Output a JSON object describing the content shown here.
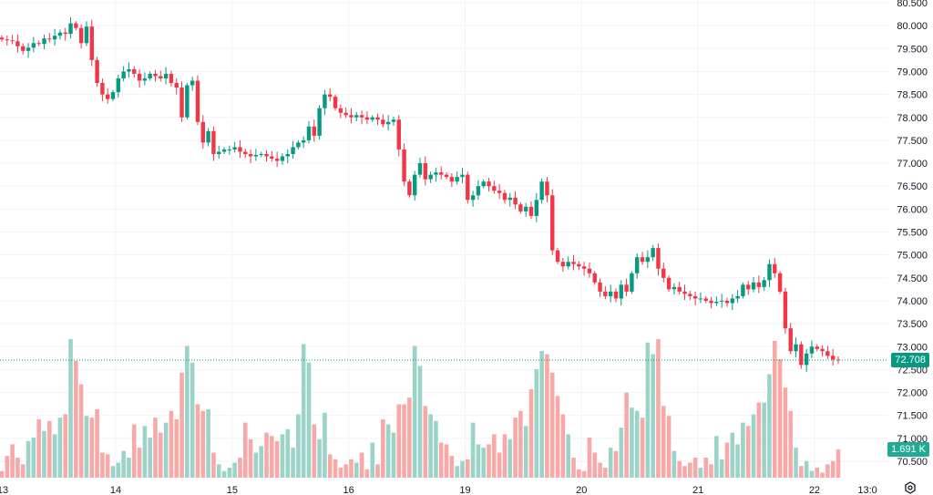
{
  "chart_data": {
    "type": "candlestick",
    "interval": "1h",
    "colors": {
      "up": "#089981",
      "down": "#f23645",
      "grid": "#f0f3fa",
      "up_volume": "#9cd3c9",
      "down_volume": "#f7a9a8"
    },
    "ylim": [
      70.5,
      80.5
    ],
    "y_ticks": [
      "80.500",
      "80.000",
      "79.500",
      "79.000",
      "78.500",
      "78.000",
      "77.500",
      "77.000",
      "76.500",
      "76.000",
      "75.500",
      "75.000",
      "74.500",
      "74.000",
      "73.500",
      "73.000",
      "72.500",
      "72.000",
      "71.500",
      "71.000",
      "70.500"
    ],
    "x_ticks": [
      {
        "label": "13",
        "index": -1
      },
      {
        "label": "14",
        "index": 21
      },
      {
        "label": "15",
        "index": 43
      },
      {
        "label": "16",
        "index": 65
      },
      {
        "label": "19",
        "index": 87
      },
      {
        "label": "20",
        "index": 109
      },
      {
        "label": "21",
        "index": 131
      },
      {
        "label": "22",
        "index": 153
      },
      {
        "label": "13:0",
        "index": 163
      }
    ],
    "open_first": 79.74,
    "close": [
      79.7,
      79.68,
      79.66,
      79.55,
      79.45,
      79.52,
      79.62,
      79.6,
      79.72,
      79.7,
      79.78,
      79.85,
      79.82,
      80.05,
      79.95,
      79.62,
      79.98,
      79.25,
      78.75,
      78.5,
      78.4,
      78.55,
      78.85,
      79.0,
      79.05,
      78.95,
      78.8,
      78.85,
      78.95,
      78.9,
      78.85,
      78.95,
      78.75,
      78.65,
      78.0,
      78.7,
      78.8,
      77.9,
      77.45,
      77.7,
      77.2,
      77.25,
      77.3,
      77.3,
      77.35,
      77.25,
      77.2,
      77.15,
      77.18,
      77.2,
      77.15,
      77.1,
      77.05,
      77.15,
      77.2,
      77.35,
      77.45,
      77.5,
      77.8,
      77.6,
      78.2,
      78.5,
      78.45,
      78.2,
      78.1,
      78.05,
      78.0,
      78.05,
      78.0,
      77.95,
      78.0,
      77.95,
      77.85,
      77.9,
      77.95,
      77.3,
      76.6,
      76.3,
      76.75,
      77.0,
      76.65,
      76.75,
      76.8,
      76.75,
      76.7,
      76.6,
      76.7,
      76.75,
      76.2,
      76.3,
      76.5,
      76.6,
      76.5,
      76.4,
      76.35,
      76.2,
      76.25,
      76.1,
      75.95,
      76.05,
      75.85,
      76.2,
      76.6,
      76.3,
      75.1,
      74.85,
      74.75,
      74.85,
      74.8,
      74.75,
      74.7,
      74.6,
      74.4,
      74.2,
      74.1,
      74.2,
      74.05,
      74.35,
      74.2,
      74.6,
      74.95,
      74.85,
      74.95,
      75.15,
      74.7,
      74.5,
      74.25,
      74.3,
      74.2,
      74.15,
      74.1,
      74.05,
      74.05,
      74.0,
      73.95,
      73.98,
      74.0,
      73.95,
      74.05,
      74.1,
      74.35,
      74.25,
      74.4,
      74.3,
      74.45,
      74.8,
      74.6,
      74.2,
      73.4,
      72.9,
      73.05,
      72.6,
      72.85,
      73.0,
      72.95,
      72.9,
      72.8,
      72.72,
      72.708
    ],
    "volume_k": [
      0.4,
      1.3,
      2.0,
      1.2,
      0.8,
      2.2,
      2.4,
      3.5,
      2.8,
      3.4,
      2.6,
      3.6,
      3.8,
      8.3,
      7.0,
      5.6,
      3.7,
      3.6,
      4.1,
      1.5,
      1.4,
      0.7,
      0.9,
      1.6,
      1.2,
      3.2,
      1.8,
      3.1,
      2.4,
      3.6,
      2.7,
      3.3,
      4.0,
      3.5,
      6.3,
      7.9,
      6.9,
      4.4,
      4.0,
      4.1,
      1.5,
      0.8,
      0.4,
      0.6,
      0.9,
      1.2,
      3.3,
      2.3,
      1.5,
      1.9,
      2.7,
      2.5,
      2.2,
      2.6,
      2.9,
      1.8,
      3.8,
      8.0,
      6.9,
      3.2,
      2.3,
      3.9,
      1.4,
      1.1,
      0.6,
      0.8,
      1.1,
      0.9,
      1.5,
      0.5,
      2.1,
      0.8,
      3.5,
      3.2,
      2.7,
      4.4,
      4.4,
      4.8,
      7.9,
      6.7,
      4.3,
      3.8,
      3.4,
      2.1,
      2.0,
      1.3,
      0.7,
      1.0,
      1.1,
      3.3,
      2.0,
      1.8,
      2.0,
      2.6,
      1.5,
      2.6,
      2.3,
      3.6,
      4.0,
      3.1,
      5.3,
      6.5,
      7.6,
      7.4,
      6.3,
      4.9,
      3.8,
      2.6,
      1.2,
      0.5,
      0.4,
      2.4,
      1.5,
      0.9,
      0.6,
      1.8,
      1.6,
      3.0,
      5.1,
      4.2,
      4.0,
      3.6,
      8.1,
      7.4,
      8.3,
      4.3,
      3.7,
      1.6,
      1.0,
      0.7,
      0.9,
      1.2,
      0.6,
      1.2,
      0.8,
      2.5,
      1.1,
      2.1,
      2.7,
      2.0,
      3.3,
      3.1,
      3.8,
      4.5,
      4.5,
      6.2,
      8.2,
      7.1,
      5.4,
      4.0,
      1.8,
      0.7,
      1.0,
      0.4,
      0.6,
      0.3,
      0.8,
      1.0,
      1.691
    ],
    "last_price": "72.708",
    "last_volume": "1.691 K",
    "grid": true
  },
  "axis": {
    "settings_icon": "gear-icon"
  }
}
